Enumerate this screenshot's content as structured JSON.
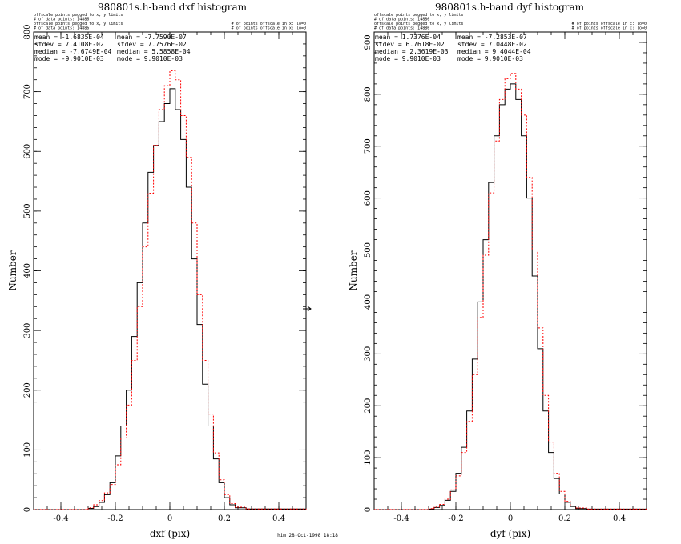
{
  "colors": {
    "primary_series": "#000000",
    "secondary_series": "#ff0000",
    "frame": "#000000"
  },
  "footer": "him 28-Oct-1998 18:18",
  "divider_icon": "right-arrow-icon",
  "chart_data": [
    {
      "type": "line",
      "title": "980801s.h-band dxf histogram",
      "xlabel": "dxf (pix)",
      "ylabel": "Number",
      "xlim": [
        -0.5,
        0.5
      ],
      "ylim": [
        0,
        800
      ],
      "xticks": [
        -0.4,
        -0.2,
        0,
        0.2,
        0.4
      ],
      "yticks": [
        0,
        100,
        200,
        300,
        400,
        500,
        600,
        700,
        800
      ],
      "legend_notes": {
        "left": [
          "offscale points pegged to x, y limits",
          "# of data points: 14886",
          "offscale points pegged to x, y limits",
          "# of data points: 14886"
        ],
        "right": [
          "# of points offscale in x: lo=0",
          "# of points offscale in x: lo=0"
        ]
      },
      "stats": [
        [
          "mean = -1.6835E-04",
          "mean = -7.7590E-07"
        ],
        [
          "stdev = 7.4108E-02",
          "stdev = 7.7576E-02"
        ],
        [
          "median = -7.6749E-04",
          "median = 5.5858E-04"
        ],
        [
          "mode = -9.9010E-03",
          "mode = 9.9010E-03"
        ]
      ],
      "series": [
        {
          "x": [
            -0.5,
            -0.3,
            -0.28,
            -0.26,
            -0.24,
            -0.22,
            -0.2,
            -0.18,
            -0.16,
            -0.14,
            -0.12,
            -0.1,
            -0.08,
            -0.06,
            -0.04,
            -0.02,
            0,
            0.02,
            0.04,
            0.06,
            0.08,
            0.1,
            0.12,
            0.14,
            0.16,
            0.18,
            0.2,
            0.22,
            0.24,
            0.28,
            0.5
          ],
          "y": [
            0,
            2,
            5,
            12,
            25,
            45,
            90,
            140,
            200,
            290,
            380,
            480,
            565,
            610,
            650,
            680,
            705,
            670,
            620,
            540,
            420,
            310,
            210,
            140,
            85,
            45,
            20,
            8,
            3,
            1,
            0
          ]
        },
        {
          "x": [
            -0.5,
            -0.3,
            -0.28,
            -0.26,
            -0.24,
            -0.22,
            -0.2,
            -0.18,
            -0.16,
            -0.14,
            -0.12,
            -0.1,
            -0.08,
            -0.06,
            -0.04,
            -0.02,
            0,
            0.02,
            0.04,
            0.06,
            0.08,
            0.1,
            0.12,
            0.14,
            0.16,
            0.18,
            0.2,
            0.22,
            0.24,
            0.28,
            0.5
          ],
          "y": [
            0,
            3,
            8,
            15,
            28,
            42,
            75,
            120,
            175,
            250,
            340,
            440,
            530,
            610,
            670,
            710,
            735,
            720,
            660,
            590,
            480,
            360,
            250,
            160,
            95,
            50,
            25,
            10,
            4,
            1,
            0
          ]
        }
      ]
    },
    {
      "type": "line",
      "title": "980801s.h-band dyf histogram",
      "xlabel": "dyf (pix)",
      "ylabel": "Number",
      "xlim": [
        -0.5,
        0.5
      ],
      "ylim": [
        0,
        920
      ],
      "xticks": [
        -0.4,
        -0.2,
        0,
        0.2,
        0.4
      ],
      "yticks": [
        0,
        100,
        200,
        300,
        400,
        500,
        600,
        700,
        800,
        900
      ],
      "legend_notes": {
        "left": [
          "offscale points pegged to x, y limits",
          "# of data points: 14886",
          "offscale points pegged to x, y limits",
          "# of data points: 14886"
        ],
        "right": [
          "# of points offscale in x: lo=0",
          "# of points offscale in x: lo=0"
        ]
      },
      "stats": [
        [
          "mean = 1.7376E-04",
          "mean = -7.2853E-07"
        ],
        [
          "stdev = 6.7618E-02",
          "stdev = 7.0448E-02"
        ],
        [
          "median = 2.3619E-03",
          "median = 9.4044E-04"
        ],
        [
          "mode = 9.9010E-03",
          "mode = 9.9010E-03"
        ]
      ],
      "series": [
        {
          "x": [
            -0.5,
            -0.3,
            -0.28,
            -0.26,
            -0.24,
            -0.22,
            -0.2,
            -0.18,
            -0.16,
            -0.14,
            -0.12,
            -0.1,
            -0.08,
            -0.06,
            -0.04,
            -0.02,
            0,
            0.02,
            0.04,
            0.06,
            0.08,
            0.1,
            0.12,
            0.14,
            0.16,
            0.18,
            0.2,
            0.22,
            0.24,
            0.28,
            0.5
          ],
          "y": [
            0,
            1,
            4,
            8,
            18,
            35,
            70,
            120,
            190,
            290,
            400,
            520,
            630,
            720,
            780,
            810,
            820,
            790,
            720,
            600,
            450,
            310,
            190,
            110,
            60,
            30,
            14,
            6,
            2,
            1,
            0
          ]
        },
        {
          "x": [
            -0.5,
            -0.3,
            -0.28,
            -0.26,
            -0.24,
            -0.22,
            -0.2,
            -0.18,
            -0.16,
            -0.14,
            -0.12,
            -0.1,
            -0.08,
            -0.06,
            -0.04,
            -0.02,
            0,
            0.02,
            0.04,
            0.06,
            0.08,
            0.1,
            0.12,
            0.14,
            0.16,
            0.18,
            0.2,
            0.22,
            0.24,
            0.28,
            0.5
          ],
          "y": [
            0,
            2,
            5,
            10,
            20,
            38,
            65,
            110,
            170,
            260,
            370,
            490,
            610,
            710,
            790,
            830,
            840,
            810,
            760,
            640,
            500,
            350,
            220,
            130,
            70,
            35,
            16,
            7,
            3,
            1,
            0
          ]
        }
      ]
    }
  ]
}
